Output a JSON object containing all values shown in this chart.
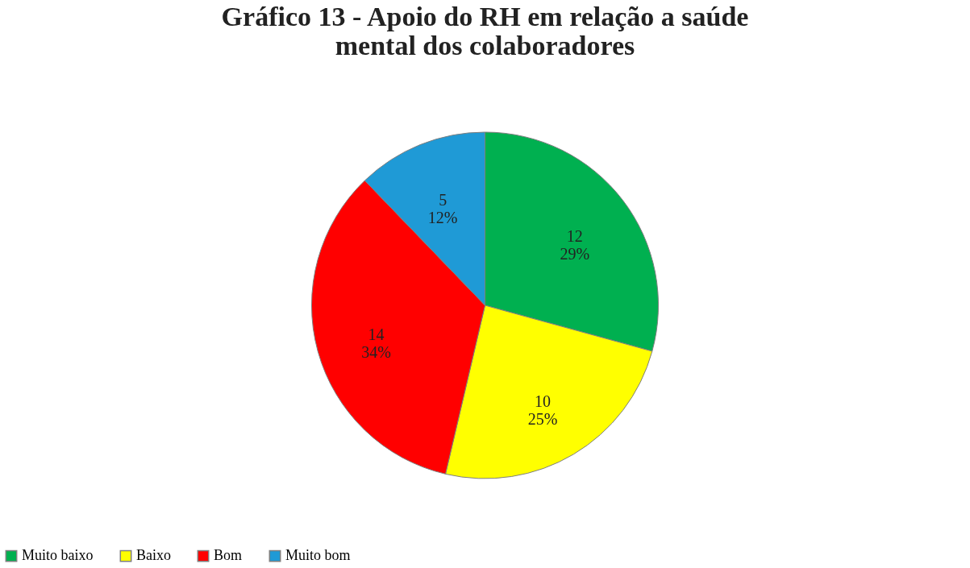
{
  "chart_data": {
    "type": "pie",
    "title": [
      "Gráfico 13 - Apoio do RH em relação a saúde",
      "mental dos colaboradores"
    ],
    "categories": [
      "Muito baixo",
      "Baixo",
      "Bom",
      "Muito bom"
    ],
    "values": [
      12,
      10,
      14,
      5
    ],
    "colors": [
      "#00b050",
      "#ffff00",
      "#ff0000",
      "#1f9ad6"
    ],
    "value_labels": [
      "12\n29%",
      "10\n25%",
      "14\n34%",
      "5\n12%"
    ],
    "legend": "bottom"
  }
}
